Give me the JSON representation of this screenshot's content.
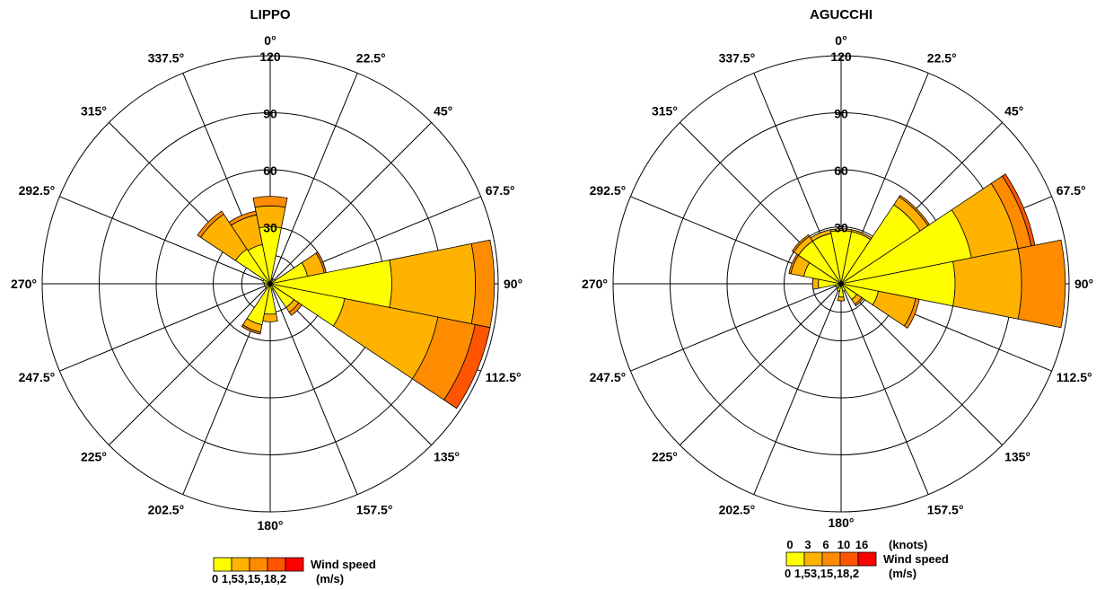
{
  "chart_data": [
    {
      "type": "windrose",
      "title": "LIPPO",
      "angle_labels": [
        "0°",
        "22.5°",
        "45°",
        "67.5°",
        "90°",
        "112.5°",
        "135°",
        "157.5°",
        "180°",
        "202.5°",
        "225°",
        "247.5°",
        "270°",
        "292.5°",
        "315°",
        "337.5°"
      ],
      "radial_ticks": [
        30,
        60,
        90,
        120
      ],
      "rmax": 120,
      "bin_colors": [
        "#ffff00",
        "#ffb300",
        "#ff8c00",
        "#ff5500",
        "#ff0000"
      ],
      "petals": [
        {
          "direction": "0°",
          "cumulative": [
            30,
            41,
            46
          ]
        },
        {
          "direction": "22.5°",
          "cumulative": [
            2
          ]
        },
        {
          "direction": "45°",
          "cumulative": [
            3
          ]
        },
        {
          "direction": "67.5°",
          "cumulative": [
            20,
            29,
            30
          ]
        },
        {
          "direction": "90°",
          "cumulative": [
            64,
            108,
            118
          ]
        },
        {
          "direction": "112.5°",
          "cumulative": [
            40,
            90,
            110,
            118
          ]
        },
        {
          "direction": "135°",
          "cumulative": [
            15,
            18,
            20
          ]
        },
        {
          "direction": "157.5°",
          "cumulative": [
            3
          ]
        },
        {
          "direction": "180°",
          "cumulative": [
            16,
            20
          ]
        },
        {
          "direction": "202.5°",
          "cumulative": [
            22,
            26,
            27
          ]
        },
        {
          "direction": "225°",
          "cumulative": [
            3
          ]
        },
        {
          "direction": "247.5°",
          "cumulative": [
            3
          ]
        },
        {
          "direction": "270°",
          "cumulative": [
            3
          ]
        },
        {
          "direction": "292.5°",
          "cumulative": [
            4
          ]
        },
        {
          "direction": "315°",
          "cumulative": [
            22,
            44,
            46
          ]
        },
        {
          "direction": "337.5°",
          "cumulative": [
            21,
            37,
            39
          ]
        }
      ],
      "legend": {
        "title": "Wind speed",
        "labels": [
          "0",
          "1,5",
          "3,1",
          "5,1",
          "8,2"
        ],
        "unit": "(m/s)"
      }
    },
    {
      "type": "windrose",
      "title": "AGUCCHI",
      "angle_labels": [
        "0°",
        "22.5°",
        "45°",
        "67.5°",
        "90°",
        "112.5°",
        "135°",
        "157.5°",
        "180°",
        "202.5°",
        "225°",
        "247.5°",
        "270°",
        "292.5°",
        "315°",
        "337.5°"
      ],
      "radial_ticks": [
        30,
        60,
        90,
        120
      ],
      "rmax": 120,
      "bin_colors": [
        "#ffff00",
        "#ffb300",
        "#ff8c00",
        "#ff5500",
        "#ff0000"
      ],
      "petals": [
        {
          "direction": "0°",
          "cumulative": [
            28,
            29
          ]
        },
        {
          "direction": "22.5°",
          "cumulative": [
            28,
            29
          ]
        },
        {
          "direction": "45°",
          "cumulative": [
            50,
            55,
            56
          ]
        },
        {
          "direction": "67.5°",
          "cumulative": [
            70,
            95,
            102,
            104
          ]
        },
        {
          "direction": "90°",
          "cumulative": [
            60,
            95,
            118
          ]
        },
        {
          "direction": "112.5°",
          "cumulative": [
            20,
            40,
            42
          ]
        },
        {
          "direction": "135°",
          "cumulative": [
            10,
            13,
            14
          ]
        },
        {
          "direction": "157.5°",
          "cumulative": [
            4
          ]
        },
        {
          "direction": "180°",
          "cumulative": [
            7,
            9
          ]
        },
        {
          "direction": "202.5°",
          "cumulative": [
            4
          ]
        },
        {
          "direction": "225°",
          "cumulative": [
            3
          ]
        },
        {
          "direction": "247.5°",
          "cumulative": [
            3
          ]
        },
        {
          "direction": "270°",
          "cumulative": [
            12,
            15
          ]
        },
        {
          "direction": "292.5°",
          "cumulative": [
            20,
            27,
            28
          ]
        },
        {
          "direction": "315°",
          "cumulative": [
            27,
            30,
            31
          ]
        },
        {
          "direction": "337.5°",
          "cumulative": [
            27,
            29
          ]
        }
      ],
      "legend": {
        "title": "Wind speed",
        "labels": [
          "0",
          "1,5",
          "3,1",
          "5,1",
          "8,2"
        ],
        "unit": "(m/s)",
        "top_labels": [
          "0",
          "3",
          "6",
          "10",
          "16"
        ],
        "top_unit": "(knots)"
      }
    }
  ]
}
